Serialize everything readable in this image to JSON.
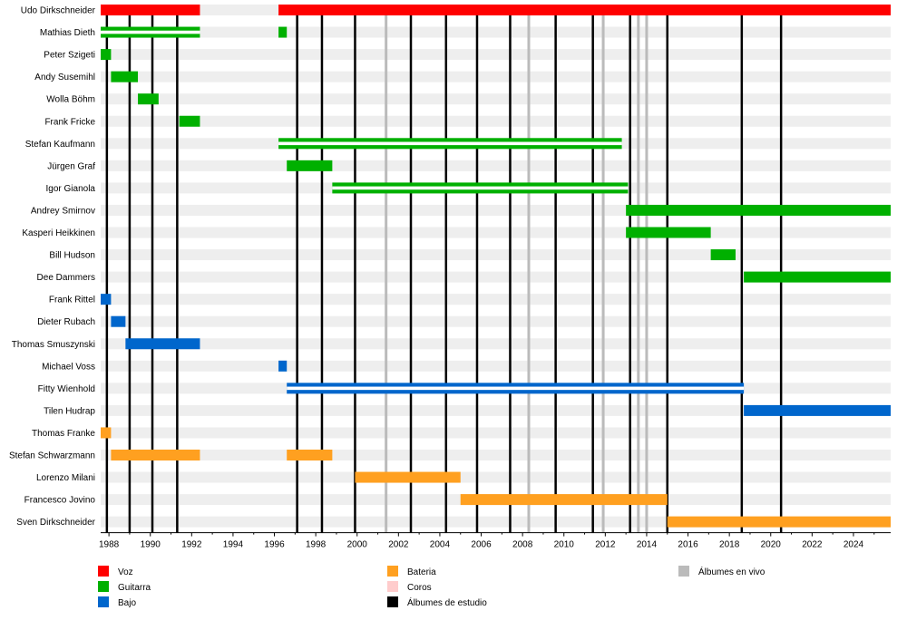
{
  "chart_data": {
    "type": "timeline",
    "x_range": [
      1987.6,
      2025.8
    ],
    "x_ticks": [
      "1988",
      "1990",
      "1992",
      "1994",
      "1996",
      "1998",
      "2000",
      "2002",
      "2004",
      "2006",
      "2008",
      "2010",
      "2012",
      "2014",
      "2016",
      "2018",
      "2020",
      "2022",
      "2024"
    ],
    "members": [
      {
        "name": "Udo Dirkschneider",
        "role": "Voz",
        "spans": [
          [
            1987.6,
            1992.4
          ],
          [
            1996.2,
            2025.8
          ]
        ]
      },
      {
        "name": "Mathias Dieth",
        "role": "Guitarra",
        "spans": [
          [
            1987.6,
            1992.4
          ],
          [
            1996.2,
            1996.6
          ]
        ]
      },
      {
        "name": "Peter Szigeti",
        "role": "Guitarra",
        "spans": [
          [
            1987.6,
            1988.1
          ]
        ]
      },
      {
        "name": "Andy Susemihl",
        "role": "Guitarra",
        "spans": [
          [
            1988.1,
            1989.4
          ]
        ]
      },
      {
        "name": "Wolla Böhm",
        "role": "Guitarra",
        "spans": [
          [
            1989.4,
            1990.4
          ]
        ]
      },
      {
        "name": "Frank Fricke",
        "role": "Guitarra",
        "spans": [
          [
            1991.4,
            1992.4
          ]
        ]
      },
      {
        "name": "Stefan Kaufmann",
        "role": "Guitarra",
        "spans": [
          [
            1996.2,
            2012.8
          ]
        ]
      },
      {
        "name": "Jürgen Graf",
        "role": "Guitarra",
        "spans": [
          [
            1996.6,
            1998.8
          ]
        ]
      },
      {
        "name": "Igor Gianola",
        "role": "Guitarra",
        "spans": [
          [
            1998.8,
            2013.1
          ]
        ]
      },
      {
        "name": "Andrey Smirnov",
        "role": "Guitarra",
        "spans": [
          [
            2013.0,
            2025.8
          ]
        ]
      },
      {
        "name": "Kasperi Heikkinen",
        "role": "Guitarra",
        "spans": [
          [
            2013.0,
            2017.1
          ]
        ]
      },
      {
        "name": "Bill Hudson",
        "role": "Guitarra",
        "spans": [
          [
            2017.1,
            2018.3
          ]
        ]
      },
      {
        "name": "Dee Dammers",
        "role": "Guitarra",
        "spans": [
          [
            2018.7,
            2025.8
          ]
        ]
      },
      {
        "name": "Frank Rittel",
        "role": "Bajo",
        "spans": [
          [
            1987.6,
            1988.1
          ]
        ]
      },
      {
        "name": "Dieter Rubach",
        "role": "Bajo",
        "spans": [
          [
            1988.1,
            1988.8
          ]
        ]
      },
      {
        "name": "Thomas Smuszynski",
        "role": "Bajo",
        "spans": [
          [
            1988.8,
            1992.4
          ]
        ]
      },
      {
        "name": "Michael Voss",
        "role": "Bajo",
        "spans": [
          [
            1996.2,
            1996.6
          ]
        ]
      },
      {
        "name": "Fitty Wienhold",
        "role": "Bajo",
        "spans": [
          [
            1996.6,
            2018.7
          ]
        ]
      },
      {
        "name": "Tilen Hudrap",
        "role": "Bajo",
        "spans": [
          [
            2018.7,
            2025.8
          ]
        ]
      },
      {
        "name": "Thomas Franke",
        "role": "Bateria",
        "spans": [
          [
            1987.6,
            1988.1
          ]
        ]
      },
      {
        "name": "Stefan Schwarzmann",
        "role": "Bateria",
        "spans": [
          [
            1988.1,
            1992.4
          ],
          [
            1996.6,
            1998.8
          ]
        ]
      },
      {
        "name": "Lorenzo Milani",
        "role": "Bateria",
        "spans": [
          [
            1999.9,
            2005.0
          ]
        ]
      },
      {
        "name": "Francesco Jovino",
        "role": "Bateria",
        "spans": [
          [
            2005.0,
            2015.0
          ]
        ]
      },
      {
        "name": "Sven Dirkschneider",
        "role": "Bateria",
        "spans": [
          [
            2015.0,
            2025.8
          ]
        ]
      }
    ],
    "secondary_roles": [
      {
        "member": "Mathias Dieth",
        "role": "Coros",
        "spans": [
          [
            1987.6,
            1992.4
          ]
        ]
      },
      {
        "member": "Stefan Kaufmann",
        "role": "Coros",
        "spans": [
          [
            1996.2,
            2012.8
          ]
        ]
      },
      {
        "member": "Igor Gianola",
        "role": "Coros",
        "spans": [
          [
            1998.8,
            2013.1
          ]
        ]
      },
      {
        "member": "Fitty Wienhold",
        "role": "Coros",
        "spans": [
          [
            1996.6,
            2018.7
          ]
        ]
      }
    ],
    "studio_albums": [
      1987.9,
      1989.0,
      1990.1,
      1991.3,
      1997.1,
      1998.3,
      1999.9,
      2002.6,
      2004.3,
      2005.8,
      2007.4,
      2009.6,
      2011.4,
      2013.2,
      2015.0,
      2018.6,
      2020.5
    ],
    "live_albums": [
      2001.4,
      2008.3,
      2011.9,
      2013.6,
      2014.0
    ],
    "legend": [
      {
        "label": "Voz",
        "color": "#ff0000"
      },
      {
        "label": "Guitarra",
        "color": "#00b000"
      },
      {
        "label": "Bajo",
        "color": "#0066cc"
      },
      {
        "label": "Bateria",
        "color": "#ffa020"
      },
      {
        "label": "Coros",
        "color": "#ffcccc"
      },
      {
        "label": "Álbumes de estudio",
        "color": "#000000"
      },
      {
        "label": "Álbumes en vivo",
        "color": "#bbbbbb"
      }
    ],
    "colors": {
      "Voz": "#ff0000",
      "Guitarra": "#00b000",
      "Bajo": "#0066cc",
      "Bateria": "#ffa020",
      "Coros": "#ffcccc",
      "studio": "#000000",
      "live": "#bbbbbb",
      "band": "#eeeeee"
    }
  }
}
